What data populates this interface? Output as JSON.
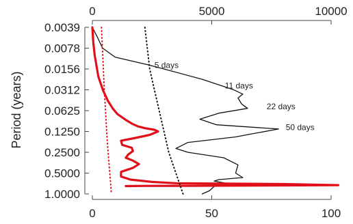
{
  "chart_data": {
    "type": "line",
    "title": "",
    "ylabel": "Period (years)",
    "y_scale": "log2",
    "y_ticks": [
      "0.0039",
      "0.0078",
      "0.0156",
      "0.0312",
      "0.0625",
      "0.1250",
      "0.2500",
      "0.5000",
      "1.0000"
    ],
    "ylim": [
      0.0039,
      1.0
    ],
    "x_top": {
      "ticks": [
        "0",
        "5000",
        "10000"
      ],
      "lim": [
        0,
        10000
      ]
    },
    "x_bottom": {
      "ticks": [
        "0",
        "50",
        "100"
      ],
      "lim": [
        0,
        100
      ]
    },
    "series": [
      {
        "axis": "top",
        "color": "#111111",
        "style": "solid",
        "points": [
          [
            0,
            0.0039
          ],
          [
            220,
            0.0055
          ],
          [
            430,
            0.0078
          ],
          [
            950,
            0.0105
          ],
          [
            2300,
            0.0135
          ],
          [
            3000,
            0.0156
          ],
          [
            4600,
            0.022
          ],
          [
            5900,
            0.031
          ],
          [
            6300,
            0.036
          ],
          [
            6100,
            0.041
          ],
          [
            6250,
            0.05
          ],
          [
            6500,
            0.058
          ],
          [
            5300,
            0.068
          ],
          [
            4500,
            0.083
          ],
          [
            5200,
            0.1
          ],
          [
            7800,
            0.115
          ],
          [
            6700,
            0.135
          ],
          [
            6000,
            0.15
          ],
          [
            4000,
            0.18
          ],
          [
            3500,
            0.22
          ],
          [
            4000,
            0.25
          ],
          [
            5500,
            0.3
          ],
          [
            6100,
            0.38
          ],
          [
            6000,
            0.5
          ],
          [
            6300,
            0.58
          ],
          [
            5300,
            0.62
          ],
          [
            5100,
            0.65
          ],
          [
            5600,
            0.7
          ],
          [
            5100,
            0.78
          ],
          [
            4900,
            0.9
          ],
          [
            4600,
            1.0
          ]
        ]
      },
      {
        "axis": "bottom",
        "color": "#e0101a",
        "style": "solid",
        "points": [
          [
            0,
            0.0039
          ],
          [
            0.4,
            0.0065
          ],
          [
            1.0,
            0.01
          ],
          [
            2.5,
            0.02
          ],
          [
            4.5,
            0.032
          ],
          [
            6.5,
            0.045
          ],
          [
            8.5,
            0.058
          ],
          [
            10.5,
            0.07
          ],
          [
            14.0,
            0.085
          ],
          [
            16.5,
            0.096
          ],
          [
            19.0,
            0.105
          ],
          [
            22.0,
            0.112
          ],
          [
            26.0,
            0.118
          ],
          [
            27.5,
            0.125
          ],
          [
            24.0,
            0.14
          ],
          [
            18.0,
            0.155
          ],
          [
            12.0,
            0.17
          ],
          [
            12.5,
            0.195
          ],
          [
            16.5,
            0.215
          ],
          [
            17.0,
            0.24
          ],
          [
            15.0,
            0.27
          ],
          [
            14.0,
            0.3
          ],
          [
            17.0,
            0.33
          ],
          [
            19.5,
            0.37
          ],
          [
            17.0,
            0.42
          ],
          [
            12.0,
            0.48
          ],
          [
            12.0,
            0.56
          ],
          [
            16.0,
            0.62
          ],
          [
            25.0,
            0.67
          ],
          [
            35.0,
            0.7
          ],
          [
            55.0,
            0.71
          ],
          [
            80.0,
            0.72
          ],
          [
            103.0,
            0.745
          ],
          [
            70.0,
            0.755
          ],
          [
            45.0,
            0.762
          ],
          [
            22.0,
            0.765
          ],
          [
            14.0,
            0.77
          ]
        ]
      },
      {
        "axis": "top",
        "color": "#111111",
        "style": "dotted",
        "points": [
          [
            2200,
            0.0039
          ],
          [
            2300,
            0.0078
          ],
          [
            2400,
            0.0156
          ],
          [
            2600,
            0.0312
          ],
          [
            2800,
            0.0625
          ],
          [
            3000,
            0.125
          ],
          [
            3200,
            0.25
          ],
          [
            3500,
            0.5
          ],
          [
            3800,
            1.0
          ]
        ]
      },
      {
        "axis": "bottom",
        "color": "#e0101a",
        "style": "dotted",
        "points": [
          [
            3.8,
            0.0039
          ],
          [
            4.2,
            0.0078
          ],
          [
            4.6,
            0.0156
          ],
          [
            5.0,
            0.0312
          ],
          [
            5.5,
            0.0625
          ],
          [
            6.0,
            0.125
          ],
          [
            6.6,
            0.25
          ],
          [
            7.3,
            0.5
          ],
          [
            8.0,
            1.0
          ]
        ]
      }
    ],
    "annotations": [
      {
        "text": "5 days",
        "x": 2600,
        "y": 0.0137
      },
      {
        "text": "11 days",
        "x": 5550,
        "y": 0.0272
      },
      {
        "text": "22 days",
        "x": 7300,
        "y": 0.0545
      },
      {
        "text": "50 days",
        "x": 8100,
        "y": 0.109
      }
    ]
  }
}
